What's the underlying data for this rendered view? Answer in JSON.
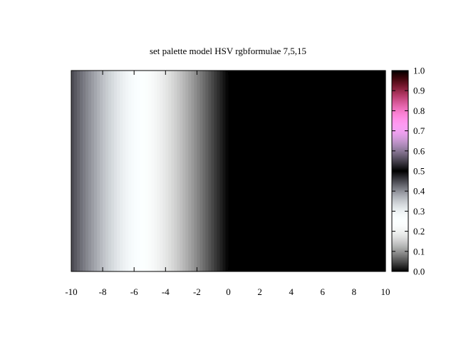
{
  "chart_data": {
    "type": "heatmap",
    "title": "set palette model HSV rgbformulae 7,5,15",
    "xlabel": "",
    "ylabel": "",
    "xlim": [
      -10,
      10
    ],
    "x_ticks": [
      -10,
      -8,
      -6,
      -4,
      -2,
      0,
      2,
      4,
      6,
      8,
      10
    ],
    "grid": false,
    "palette": {
      "model": "HSV",
      "rgbformulae": [
        7,
        5,
        15
      ]
    },
    "colorbox": {
      "range": [
        0.0,
        1.0
      ],
      "ticks": [
        "0.0",
        "0.1",
        "0.2",
        "0.3",
        "0.4",
        "0.5",
        "0.6",
        "0.7",
        "0.8",
        "0.9",
        "1.0"
      ],
      "placement": "right"
    },
    "value_profile": {
      "x": [
        -10,
        -9,
        -8,
        -7,
        -6,
        -5,
        -4,
        -3,
        -2,
        -1,
        0,
        2,
        4,
        6,
        8,
        10
      ],
      "value": [
        0.45,
        0.405,
        0.36,
        0.315,
        0.27,
        0.225,
        0.18,
        0.135,
        0.09,
        0.045,
        0.0,
        0.0,
        0.0,
        0.0,
        0.0,
        0.0
      ],
      "note_visible": false
    }
  }
}
